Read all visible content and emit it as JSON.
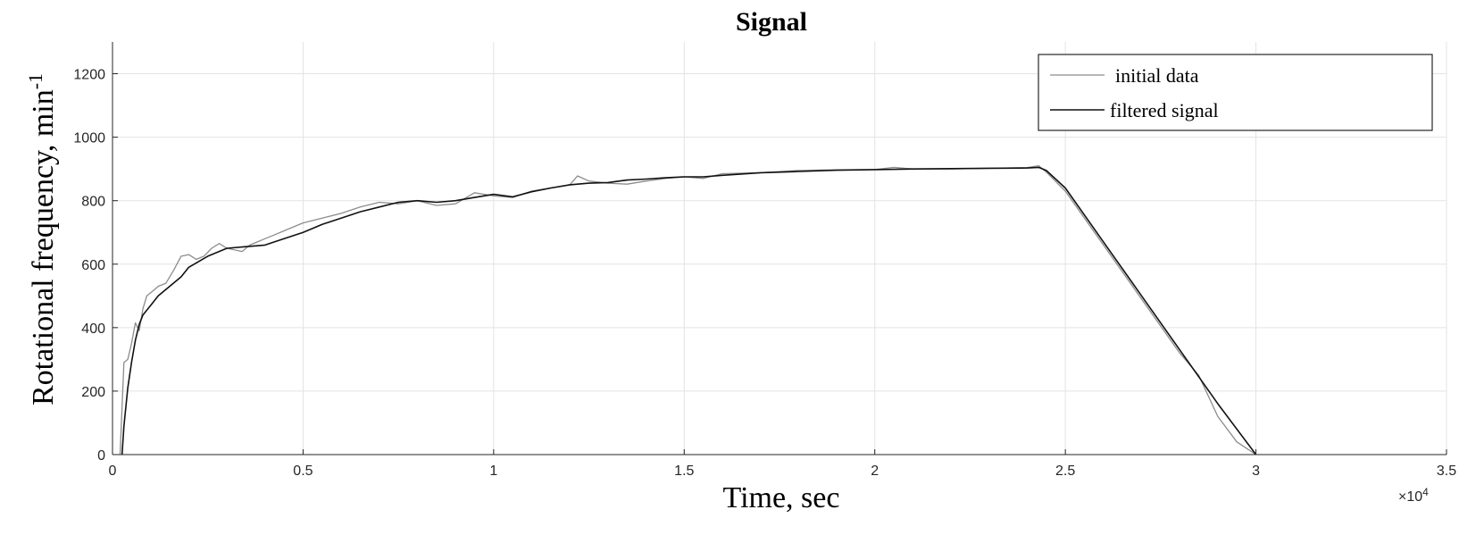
{
  "chart_data": {
    "type": "line",
    "title": "Signal",
    "xlabel": "Time, sec",
    "ylabel": "Rotational  frequency, min",
    "ylabel_superscript": "-1",
    "x_multiplier_base": "×10",
    "x_multiplier_exponent": "4",
    "xlim": [
      0,
      3.5
    ],
    "ylim": [
      0,
      1300
    ],
    "x_ticks": [
      0,
      0.5,
      1,
      1.5,
      2,
      2.5,
      3,
      3.5
    ],
    "x_tick_labels": [
      "0",
      "0.5",
      "1",
      "1.5",
      "2",
      "2.5",
      "3",
      "3.5"
    ],
    "y_ticks": [
      0,
      200,
      400,
      600,
      800,
      1000,
      1200
    ],
    "y_tick_labels": [
      "0",
      "200",
      "400",
      "600",
      "800",
      "1000",
      "1200"
    ],
    "grid": true,
    "legend_position": "top-right",
    "series": [
      {
        "name": "initial data",
        "color": "#8c8c8c",
        "x": [
          0.02,
          0.025,
          0.03,
          0.04,
          0.05,
          0.06,
          0.07,
          0.08,
          0.09,
          0.1,
          0.11,
          0.12,
          0.14,
          0.16,
          0.18,
          0.2,
          0.22,
          0.24,
          0.26,
          0.28,
          0.3,
          0.32,
          0.34,
          0.36,
          0.38,
          0.4,
          0.42,
          0.45,
          0.48,
          0.5,
          0.55,
          0.6,
          0.65,
          0.7,
          0.75,
          0.8,
          0.85,
          0.9,
          0.95,
          1.0,
          1.05,
          1.1,
          1.15,
          1.2,
          1.22,
          1.25,
          1.3,
          1.35,
          1.4,
          1.45,
          1.5,
          1.55,
          1.6,
          1.7,
          1.8,
          1.9,
          2.0,
          2.05,
          2.1,
          2.2,
          2.3,
          2.4,
          2.43,
          2.45,
          2.5,
          2.6,
          2.7,
          2.8,
          2.85,
          2.9,
          2.95,
          3.0
        ],
        "y": [
          0,
          150,
          290,
          300,
          350,
          415,
          390,
          460,
          500,
          510,
          520,
          530,
          540,
          580,
          625,
          630,
          615,
          625,
          650,
          665,
          650,
          645,
          640,
          660,
          670,
          680,
          690,
          705,
          720,
          730,
          745,
          760,
          780,
          795,
          790,
          800,
          785,
          790,
          825,
          815,
          810,
          830,
          840,
          850,
          878,
          862,
          855,
          852,
          862,
          870,
          875,
          870,
          885,
          888,
          895,
          897,
          898,
          905,
          900,
          900,
          902,
          904,
          910,
          890,
          830,
          660,
          490,
          320,
          250,
          120,
          40,
          0
        ]
      },
      {
        "name": "filtered signal",
        "color": "#111111",
        "x": [
          0.025,
          0.03,
          0.04,
          0.05,
          0.06,
          0.07,
          0.08,
          0.1,
          0.12,
          0.15,
          0.18,
          0.2,
          0.25,
          0.3,
          0.35,
          0.4,
          0.45,
          0.5,
          0.55,
          0.6,
          0.65,
          0.7,
          0.75,
          0.8,
          0.85,
          0.9,
          0.95,
          1.0,
          1.05,
          1.1,
          1.15,
          1.2,
          1.25,
          1.3,
          1.35,
          1.4,
          1.45,
          1.5,
          1.55,
          1.6,
          1.7,
          1.8,
          1.9,
          2.0,
          2.1,
          2.2,
          2.3,
          2.4,
          2.43,
          2.45,
          2.5,
          2.6,
          2.7,
          2.8,
          2.9,
          3.0
        ],
        "y": [
          0,
          90,
          210,
          290,
          360,
          410,
          440,
          470,
          500,
          530,
          560,
          590,
          625,
          650,
          655,
          660,
          680,
          700,
          725,
          745,
          765,
          780,
          795,
          800,
          795,
          800,
          810,
          820,
          812,
          828,
          840,
          850,
          855,
          857,
          865,
          868,
          872,
          875,
          875,
          880,
          888,
          892,
          896,
          898,
          900,
          901,
          902,
          903,
          905,
          895,
          840,
          670,
          500,
          330,
          160,
          0
        ]
      }
    ]
  }
}
